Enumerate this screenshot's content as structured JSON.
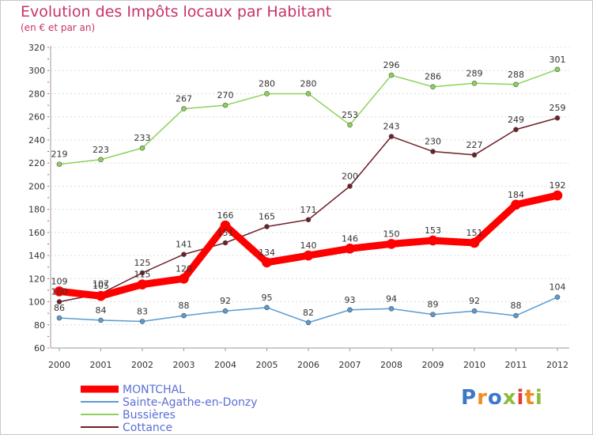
{
  "title": "Evolution des Impôts locaux par Habitant",
  "subtitle": "(en € et par an)",
  "logo": {
    "text": "Proxiti"
  },
  "chart_data": {
    "type": "line",
    "title": "Evolution des Impôts locaux par Habitant",
    "subtitle": "(en € et par an)",
    "x": [
      "2000",
      "2001",
      "2002",
      "2003",
      "2004",
      "2005",
      "2006",
      "2007",
      "2008",
      "2009",
      "2010",
      "2011",
      "2012"
    ],
    "ylim": [
      60,
      320
    ],
    "yticks": [
      60,
      80,
      100,
      120,
      140,
      160,
      180,
      200,
      220,
      240,
      260,
      280,
      300,
      320
    ],
    "grid": "horizontal",
    "legend_position": "bottom-left",
    "series": [
      {
        "name": "Bussières",
        "color": "#8cd25a",
        "values": [
          219,
          223,
          233,
          267,
          270,
          280,
          280,
          253,
          296,
          286,
          289,
          288,
          301
        ]
      },
      {
        "name": "Cottance",
        "color": "#6e1e28",
        "values": [
          100,
          107,
          125,
          141,
          151,
          165,
          171,
          200,
          243,
          230,
          227,
          249,
          259
        ]
      },
      {
        "name": "Sainte-Agathe-en-Donzy",
        "color": "#5a9bd2",
        "values": [
          86,
          84,
          83,
          88,
          92,
          95,
          82,
          93,
          94,
          89,
          92,
          88,
          104
        ]
      },
      {
        "name": "MONTCHAL",
        "color": "#ff0000",
        "values": [
          109,
          105,
          115,
          120,
          166,
          134,
          140,
          146,
          150,
          153,
          151,
          184,
          192
        ]
      }
    ],
    "legend_order": [
      "MONTCHAL",
      "Sainte-Agathe-en-Donzy",
      "Bussières",
      "Cottance"
    ]
  }
}
